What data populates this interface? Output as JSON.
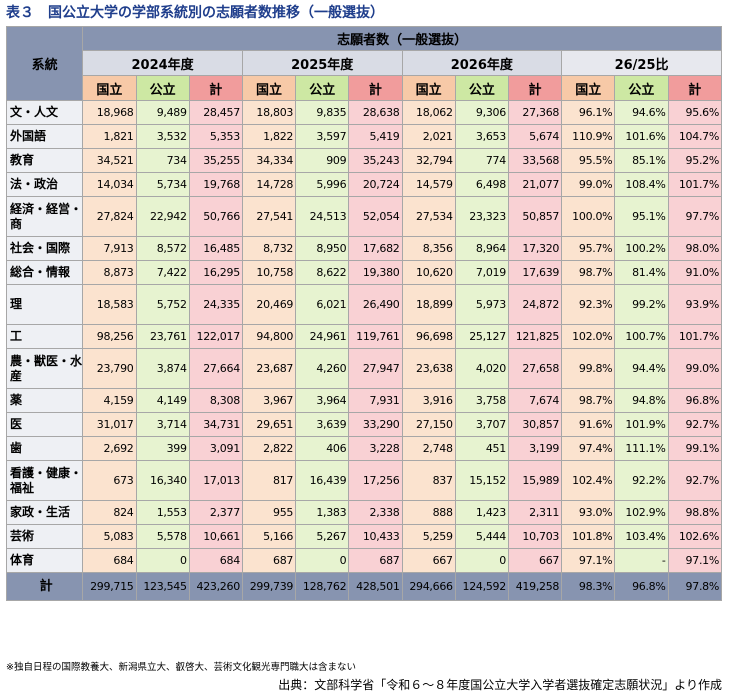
{
  "title": {
    "number": "表３",
    "text": "国公立大学の学部系統別の志願者数推移（一般選抜）"
  },
  "table": {
    "category_header": "系統",
    "group_header": "志願者数（一般選抜）",
    "years": [
      "2024年度",
      "2025年度",
      "2026年度",
      "26/25比"
    ],
    "subheaders": [
      "国立",
      "公立",
      "計"
    ],
    "rows": [
      {
        "label": "文・人文",
        "cells": [
          "18,968",
          "9,489",
          "28,457",
          "18,803",
          "9,835",
          "28,638",
          "18,062",
          "9,306",
          "27,368",
          "96.1%",
          "94.6%",
          "95.6%"
        ]
      },
      {
        "label": "外国語",
        "cells": [
          "1,821",
          "3,532",
          "5,353",
          "1,822",
          "3,597",
          "5,419",
          "2,021",
          "3,653",
          "5,674",
          "110.9%",
          "101.6%",
          "104.7%"
        ]
      },
      {
        "label": "教育",
        "cells": [
          "34,521",
          "734",
          "35,255",
          "34,334",
          "909",
          "35,243",
          "32,794",
          "774",
          "33,568",
          "95.5%",
          "85.1%",
          "95.2%"
        ]
      },
      {
        "label": "法・政治",
        "cells": [
          "14,034",
          "5,734",
          "19,768",
          "14,728",
          "5,996",
          "20,724",
          "14,579",
          "6,498",
          "21,077",
          "99.0%",
          "108.4%",
          "101.7%"
        ]
      },
      {
        "label": "経済・経営・商",
        "cells": [
          "27,824",
          "22,942",
          "50,766",
          "27,541",
          "24,513",
          "52,054",
          "27,534",
          "23,323",
          "50,857",
          "100.0%",
          "95.1%",
          "97.7%"
        ]
      },
      {
        "label": "社会・国際",
        "cells": [
          "7,913",
          "8,572",
          "16,485",
          "8,732",
          "8,950",
          "17,682",
          "8,356",
          "8,964",
          "17,320",
          "95.7%",
          "100.2%",
          "98.0%"
        ]
      },
      {
        "label": "総合・情報",
        "cells": [
          "8,873",
          "7,422",
          "16,295",
          "10,758",
          "8,622",
          "19,380",
          "10,620",
          "7,019",
          "17,639",
          "98.7%",
          "81.4%",
          "91.0%"
        ]
      },
      {
        "label": "理",
        "cells": [
          "18,583",
          "5,752",
          "24,335",
          "20,469",
          "6,021",
          "26,490",
          "18,899",
          "5,973",
          "24,872",
          "92.3%",
          "99.2%",
          "93.9%"
        ]
      },
      {
        "label": "工",
        "cells": [
          "98,256",
          "23,761",
          "122,017",
          "94,800",
          "24,961",
          "119,761",
          "96,698",
          "25,127",
          "121,825",
          "102.0%",
          "100.7%",
          "101.7%"
        ]
      },
      {
        "label": "農・獣医・水産",
        "cells": [
          "23,790",
          "3,874",
          "27,664",
          "23,687",
          "4,260",
          "27,947",
          "23,638",
          "4,020",
          "27,658",
          "99.8%",
          "94.4%",
          "99.0%"
        ]
      },
      {
        "label": "薬",
        "cells": [
          "4,159",
          "4,149",
          "8,308",
          "3,967",
          "3,964",
          "7,931",
          "3,916",
          "3,758",
          "7,674",
          "98.7%",
          "94.8%",
          "96.8%"
        ]
      },
      {
        "label": "医",
        "cells": [
          "31,017",
          "3,714",
          "34,731",
          "29,651",
          "3,639",
          "33,290",
          "27,150",
          "3,707",
          "30,857",
          "91.6%",
          "101.9%",
          "92.7%"
        ]
      },
      {
        "label": "歯",
        "cells": [
          "2,692",
          "399",
          "3,091",
          "2,822",
          "406",
          "3,228",
          "2,748",
          "451",
          "3,199",
          "97.4%",
          "111.1%",
          "99.1%"
        ]
      },
      {
        "label": "看護・健康・福祉",
        "cells": [
          "673",
          "16,340",
          "17,013",
          "817",
          "16,439",
          "17,256",
          "837",
          "15,152",
          "15,989",
          "102.4%",
          "92.2%",
          "92.7%"
        ]
      },
      {
        "label": "家政・生活",
        "cells": [
          "824",
          "1,553",
          "2,377",
          "955",
          "1,383",
          "2,338",
          "888",
          "1,423",
          "2,311",
          "93.0%",
          "102.9%",
          "98.8%"
        ]
      },
      {
        "label": "芸術",
        "cells": [
          "5,083",
          "5,578",
          "10,661",
          "5,166",
          "5,267",
          "10,433",
          "5,259",
          "5,444",
          "10,703",
          "101.8%",
          "103.4%",
          "102.6%"
        ]
      },
      {
        "label": "体育",
        "cells": [
          "684",
          "0",
          "684",
          "687",
          "0",
          "687",
          "667",
          "0",
          "667",
          "97.1%",
          "-",
          "97.1%"
        ]
      }
    ],
    "total": {
      "label": "計",
      "cells": [
        "299,715",
        "123,545",
        "423,260",
        "299,739",
        "128,762",
        "428,501",
        "294,666",
        "124,592",
        "419,258",
        "98.3%",
        "96.8%",
        "97.8%"
      ]
    }
  },
  "note": "※独自日程の国際教養大、新潟県立大、叡啓大、芸術文化観光専門職大は含まない",
  "source": "出典：文部科学省「令和６～８年度国公立大学入学者選抜確定志願状況」より作成"
}
